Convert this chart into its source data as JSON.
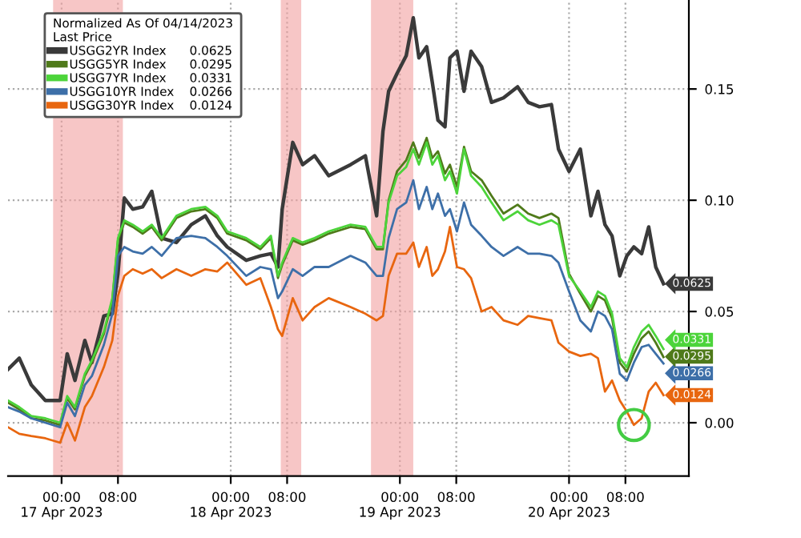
{
  "chart_data": {
    "type": "line",
    "legend_title": "Normalized As Of 04/14/2023\nLast Price",
    "x": [
      "2023-04-16T16:24",
      "2023-04-16T18:00",
      "2023-04-16T19:42",
      "2023-04-16T21:42",
      "2023-04-16T23:48",
      "2023-04-17T00:48",
      "2023-04-17T01:54",
      "2023-04-17T03:18",
      "2023-04-17T04:18",
      "2023-04-17T06:00",
      "2023-04-17T07:12",
      "2023-04-17T08:00",
      "2023-04-17T08:54",
      "2023-04-17T10:06",
      "2023-04-17T11:30",
      "2023-04-17T12:48",
      "2023-04-17T14:12",
      "2023-04-17T16:18",
      "2023-04-17T18:24",
      "2023-04-17T20:24",
      "2023-04-17T22:06",
      "2023-04-17T23:30",
      "2023-04-18T02:12",
      "2023-04-18T04:12",
      "2023-04-18T05:42",
      "2023-04-18T06:42",
      "2023-04-18T07:18",
      "2023-04-18T08:48",
      "2023-04-18T10:12",
      "2023-04-18T11:54",
      "2023-04-18T13:54",
      "2023-04-18T17:00",
      "2023-04-18T19:06",
      "2023-04-18T20:42",
      "2023-04-18T21:36",
      "2023-04-18T22:24",
      "2023-04-18T23:36",
      "2023-04-19T00:54",
      "2023-04-19T01:54",
      "2023-04-19T02:42",
      "2023-04-19T03:48",
      "2023-04-19T04:36",
      "2023-04-19T05:24",
      "2023-04-19T06:24",
      "2023-04-19T07:06",
      "2023-04-19T08:06",
      "2023-04-19T09:06",
      "2023-04-19T10:06",
      "2023-04-19T11:36",
      "2023-04-19T13:00",
      "2023-04-19T14:42",
      "2023-04-19T16:42",
      "2023-04-19T18:12",
      "2023-04-19T19:48",
      "2023-04-19T21:30",
      "2023-04-19T22:30",
      "2023-04-20T00:00",
      "2023-04-20T01:36",
      "2023-04-20T03:06",
      "2023-04-20T04:06",
      "2023-04-20T05:06",
      "2023-04-20T06:06",
      "2023-04-20T07:12",
      "2023-04-20T08:12",
      "2023-04-20T09:12",
      "2023-04-20T10:18",
      "2023-04-20T11:18",
      "2023-04-20T12:18",
      "2023-04-20T13:24"
    ],
    "series": [
      {
        "name": "USGG2YR Index",
        "color": "#3a3a3a",
        "value_labels": [
          null,
          null,
          null,
          null,
          null,
          null,
          null,
          null,
          null,
          null,
          null,
          null,
          null,
          null,
          null,
          null,
          null,
          null,
          null,
          null,
          null,
          null,
          null,
          null,
          null,
          null,
          null,
          null,
          null,
          null,
          null,
          null,
          null,
          null,
          null,
          null,
          null,
          null,
          null,
          null,
          null,
          null,
          null,
          null,
          null,
          null,
          null,
          null,
          null,
          null,
          null,
          null,
          null,
          null,
          null,
          null,
          null,
          null,
          null,
          null,
          null,
          null,
          null,
          null,
          null,
          null,
          null,
          null,
          "0.0625"
        ],
        "values": [
          0.024,
          0.029,
          0.017,
          0.01,
          0.01,
          0.031,
          0.019,
          0.037,
          0.027,
          0.048,
          0.049,
          0.067,
          0.101,
          0.096,
          0.097,
          0.104,
          0.083,
          0.081,
          0.089,
          0.093,
          0.084,
          0.079,
          0.073,
          0.075,
          0.076,
          0.07,
          0.096,
          0.126,
          0.116,
          0.12,
          0.111,
          0.116,
          0.12,
          0.093,
          0.131,
          0.149,
          0.157,
          0.165,
          0.182,
          0.164,
          0.169,
          0.153,
          0.136,
          0.133,
          0.164,
          0.167,
          0.149,
          0.167,
          0.16,
          0.144,
          0.146,
          0.151,
          0.144,
          0.142,
          0.143,
          0.123,
          0.113,
          0.123,
          0.093,
          0.104,
          0.089,
          0.084,
          0.066,
          0.075,
          0.079,
          0.076,
          0.088,
          0.07,
          0.0625
        ]
      },
      {
        "name": "USGG5YR Index",
        "color": "#4f7a1a",
        "value_labels": [
          null,
          null,
          null,
          null,
          null,
          null,
          null,
          null,
          null,
          null,
          null,
          null,
          null,
          null,
          null,
          null,
          null,
          null,
          null,
          null,
          null,
          null,
          null,
          null,
          null,
          null,
          null,
          null,
          null,
          null,
          null,
          null,
          null,
          null,
          null,
          null,
          null,
          null,
          null,
          null,
          null,
          null,
          null,
          null,
          null,
          null,
          null,
          null,
          null,
          null,
          null,
          null,
          null,
          null,
          null,
          null,
          null,
          null,
          null,
          null,
          null,
          null,
          null,
          null,
          null,
          null,
          null,
          null,
          "0.0295"
        ],
        "values": [
          0.009,
          0.006,
          0.002,
          0.001,
          -0.001,
          0.011,
          0.006,
          0.021,
          0.027,
          0.04,
          0.055,
          0.082,
          0.09,
          0.088,
          0.085,
          0.088,
          0.082,
          0.092,
          0.095,
          0.096,
          0.092,
          0.085,
          0.082,
          0.078,
          0.083,
          0.065,
          0.071,
          0.082,
          0.08,
          0.082,
          0.085,
          0.088,
          0.087,
          0.078,
          0.078,
          0.1,
          0.113,
          0.118,
          0.126,
          0.119,
          0.128,
          0.119,
          0.122,
          0.112,
          0.116,
          0.106,
          0.124,
          0.113,
          0.109,
          0.102,
          0.094,
          0.098,
          0.094,
          0.092,
          0.094,
          0.092,
          0.067,
          0.058,
          0.05,
          0.057,
          0.055,
          0.047,
          0.027,
          0.023,
          0.031,
          0.038,
          0.041,
          0.036,
          0.0295
        ]
      },
      {
        "name": "USGG7YR Index",
        "color": "#4cd43a",
        "value_labels": [
          null,
          null,
          null,
          null,
          null,
          null,
          null,
          null,
          null,
          null,
          null,
          null,
          null,
          null,
          null,
          null,
          null,
          null,
          null,
          null,
          null,
          null,
          null,
          null,
          null,
          null,
          null,
          null,
          null,
          null,
          null,
          null,
          null,
          null,
          null,
          null,
          null,
          null,
          null,
          null,
          null,
          null,
          null,
          null,
          null,
          null,
          null,
          null,
          null,
          null,
          null,
          null,
          null,
          null,
          null,
          null,
          null,
          null,
          null,
          null,
          null,
          null,
          null,
          null,
          null,
          null,
          null,
          null,
          "0.0331"
        ],
        "values": [
          0.01,
          0.007,
          0.003,
          0.002,
          0.0,
          0.012,
          0.007,
          0.022,
          0.028,
          0.041,
          0.056,
          0.083,
          0.091,
          0.089,
          0.086,
          0.089,
          0.083,
          0.093,
          0.096,
          0.097,
          0.093,
          0.086,
          0.083,
          0.079,
          0.084,
          0.066,
          0.072,
          0.083,
          0.081,
          0.083,
          0.086,
          0.089,
          0.088,
          0.079,
          0.079,
          0.099,
          0.111,
          0.115,
          0.123,
          0.116,
          0.126,
          0.116,
          0.12,
          0.109,
          0.113,
          0.103,
          0.123,
          0.111,
          0.106,
          0.099,
          0.091,
          0.095,
          0.091,
          0.089,
          0.091,
          0.089,
          0.066,
          0.059,
          0.052,
          0.059,
          0.057,
          0.049,
          0.029,
          0.025,
          0.034,
          0.041,
          0.044,
          0.039,
          0.0331
        ]
      },
      {
        "name": "USGG10YR Index",
        "color": "#3d6fa8",
        "value_labels": [
          null,
          null,
          null,
          null,
          null,
          null,
          null,
          null,
          null,
          null,
          null,
          null,
          null,
          null,
          null,
          null,
          null,
          null,
          null,
          null,
          null,
          null,
          null,
          null,
          null,
          null,
          null,
          null,
          null,
          null,
          null,
          null,
          null,
          null,
          null,
          null,
          null,
          null,
          null,
          null,
          null,
          null,
          null,
          null,
          null,
          null,
          null,
          null,
          null,
          null,
          null,
          null,
          null,
          null,
          null,
          null,
          null,
          null,
          null,
          null,
          null,
          null,
          null,
          null,
          null,
          null,
          null,
          null,
          "0.0266"
        ],
        "values": [
          0.007,
          0.005,
          0.002,
          0.0,
          -0.002,
          0.009,
          0.003,
          0.017,
          0.021,
          0.035,
          0.049,
          0.075,
          0.079,
          0.077,
          0.076,
          0.079,
          0.075,
          0.083,
          0.084,
          0.083,
          0.079,
          0.075,
          0.066,
          0.07,
          0.069,
          0.056,
          0.059,
          0.069,
          0.066,
          0.07,
          0.07,
          0.075,
          0.072,
          0.066,
          0.066,
          0.083,
          0.096,
          0.099,
          0.109,
          0.096,
          0.106,
          0.096,
          0.103,
          0.093,
          0.096,
          0.086,
          0.099,
          0.089,
          0.084,
          0.079,
          0.075,
          0.079,
          0.076,
          0.076,
          0.075,
          0.072,
          0.059,
          0.046,
          0.041,
          0.05,
          0.048,
          0.042,
          0.022,
          0.019,
          0.027,
          0.034,
          0.035,
          0.031,
          0.0266
        ]
      },
      {
        "name": "USGG30YR Index",
        "color": "#e8660f",
        "value_labels": [
          null,
          null,
          null,
          null,
          null,
          null,
          null,
          null,
          null,
          null,
          null,
          null,
          null,
          null,
          null,
          null,
          null,
          null,
          null,
          null,
          null,
          null,
          null,
          null,
          null,
          null,
          null,
          null,
          null,
          null,
          null,
          null,
          null,
          null,
          null,
          null,
          null,
          null,
          null,
          null,
          null,
          null,
          null,
          null,
          null,
          null,
          null,
          null,
          null,
          null,
          null,
          null,
          null,
          null,
          null,
          null,
          null,
          null,
          null,
          null,
          null,
          null,
          null,
          null,
          null,
          null,
          null,
          null,
          "0.0124"
        ],
        "values": [
          -0.002,
          -0.005,
          -0.006,
          -0.007,
          -0.009,
          0.0,
          -0.008,
          0.007,
          0.012,
          0.025,
          0.037,
          0.057,
          0.066,
          0.069,
          0.067,
          0.069,
          0.065,
          0.069,
          0.066,
          0.069,
          0.068,
          0.072,
          0.062,
          0.065,
          0.052,
          0.042,
          0.039,
          0.056,
          0.046,
          0.052,
          0.056,
          0.052,
          0.049,
          0.046,
          0.048,
          0.066,
          0.076,
          0.076,
          0.081,
          0.07,
          0.079,
          0.066,
          0.069,
          0.077,
          0.088,
          0.07,
          0.069,
          0.065,
          0.05,
          0.052,
          0.046,
          0.044,
          0.048,
          0.047,
          0.046,
          0.036,
          0.032,
          0.03,
          0.031,
          0.029,
          0.014,
          0.019,
          0.01,
          0.005,
          -0.001,
          0.002,
          0.014,
          0.018,
          0.0124
        ]
      }
    ],
    "xlim": [
      "2023-04-16T16:24",
      "2023-04-20T17:00"
    ],
    "xticks": [
      {
        "value": "2023-04-17T00:00",
        "label": "00:00\n17 Apr 2023"
      },
      {
        "value": "2023-04-17T08:00",
        "label": "08:00"
      },
      {
        "value": "2023-04-18T00:00",
        "label": "00:00\n18 Apr 2023"
      },
      {
        "value": "2023-04-18T08:00",
        "label": "08:00"
      },
      {
        "value": "2023-04-19T00:00",
        "label": "00:00\n19 Apr 2023"
      },
      {
        "value": "2023-04-19T08:00",
        "label": "08:00"
      },
      {
        "value": "2023-04-20T00:00",
        "label": "00:00\n20 Apr 2023"
      },
      {
        "value": "2023-04-20T08:00",
        "label": "08:00"
      }
    ],
    "ylim": [
      -0.024,
      0.19
    ],
    "yticks": [
      {
        "value": 0,
        "label": "0.00"
      },
      {
        "value": 0.05,
        "label": "0.05"
      },
      {
        "value": 0.1,
        "label": "0.10"
      },
      {
        "value": 0.15,
        "label": "0.15"
      }
    ],
    "bands": [
      {
        "axis": "x",
        "from": "2023-04-16T22:48",
        "to": "2023-04-17T08:42",
        "color": "#f2a0a0"
      },
      {
        "axis": "x",
        "from": "2023-04-18T07:06",
        "to": "2023-04-18T10:00",
        "color": "#f2a0a0"
      },
      {
        "axis": "x",
        "from": "2023-04-18T19:54",
        "to": "2023-04-19T01:54",
        "color": "#f2a0a0"
      }
    ],
    "grid": true,
    "legend": "top left"
  }
}
